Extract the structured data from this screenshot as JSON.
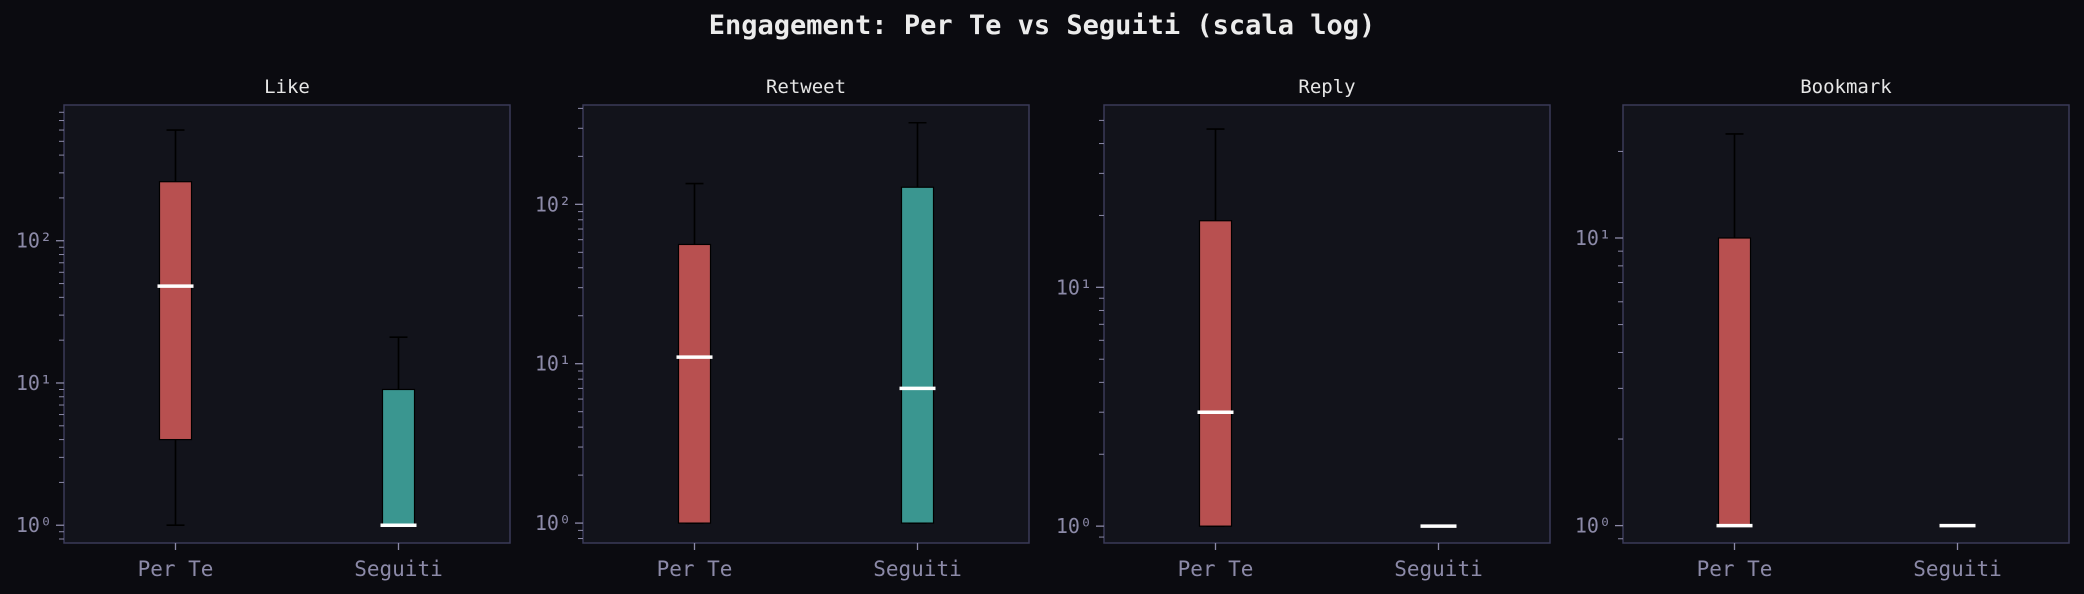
{
  "title": "Engagement: Per Te vs Seguiti (scala log)",
  "colors": {
    "background": "#0b0b10",
    "axes_bg": "#12131b",
    "axes_frame": "#3a3b58",
    "tick_text": "#8c8aa8",
    "title_text": "#e6e6e6",
    "per_te": "#b85050",
    "seguiti": "#3a9690",
    "median": "#ffffff",
    "whisker": "#000000"
  },
  "chart_data": [
    {
      "type": "box",
      "title": "Like",
      "yscale": "log",
      "ylim": [
        0.75,
        900
      ],
      "yticks": [
        1,
        10,
        100
      ],
      "ytick_labels": [
        "10⁰",
        "10¹",
        "10²"
      ],
      "categories": [
        "Per Te",
        "Seguiti"
      ],
      "boxes": [
        {
          "name": "Per Te",
          "whisker_low": 1,
          "q1": 4,
          "median": 48,
          "q3": 260,
          "whisker_high": 600
        },
        {
          "name": "Seguiti",
          "whisker_low": 1,
          "q1": 1,
          "median": 1,
          "q3": 9,
          "whisker_high": 21
        }
      ]
    },
    {
      "type": "box",
      "title": "Retweet",
      "yscale": "log",
      "ylim": [
        0.75,
        420
      ],
      "yticks": [
        1,
        10,
        100
      ],
      "ytick_labels": [
        "10⁰",
        "10¹",
        "10²"
      ],
      "categories": [
        "Per Te",
        "Seguiti"
      ],
      "boxes": [
        {
          "name": "Per Te",
          "whisker_low": 1,
          "q1": 1,
          "median": 11,
          "q3": 56,
          "whisker_high": 135
        },
        {
          "name": "Seguiti",
          "whisker_low": 1,
          "q1": 1,
          "median": 7,
          "q3": 128,
          "whisker_high": 325
        }
      ]
    },
    {
      "type": "box",
      "title": "Reply",
      "yscale": "log",
      "ylim": [
        0.85,
        58
      ],
      "yticks": [
        1,
        10
      ],
      "ytick_labels": [
        "10⁰",
        "10¹"
      ],
      "categories": [
        "Per Te",
        "Seguiti"
      ],
      "boxes": [
        {
          "name": "Per Te",
          "whisker_low": 1,
          "q1": 1,
          "median": 3,
          "q3": 19,
          "whisker_high": 46
        },
        {
          "name": "Seguiti",
          "whisker_low": 1,
          "q1": 1,
          "median": 1,
          "q3": 1,
          "whisker_high": 1
        }
      ]
    },
    {
      "type": "box",
      "title": "Bookmark",
      "yscale": "log",
      "ylim": [
        0.87,
        29
      ],
      "yticks": [
        1,
        10
      ],
      "ytick_labels": [
        "10⁰",
        "10¹"
      ],
      "categories": [
        "Per Te",
        "Seguiti"
      ],
      "boxes": [
        {
          "name": "Per Te",
          "whisker_low": 1,
          "q1": 1,
          "median": 1,
          "q3": 10,
          "whisker_high": 23
        },
        {
          "name": "Seguiti",
          "whisker_low": 1,
          "q1": 1,
          "median": 1,
          "q3": 1,
          "whisker_high": 1
        }
      ]
    }
  ]
}
